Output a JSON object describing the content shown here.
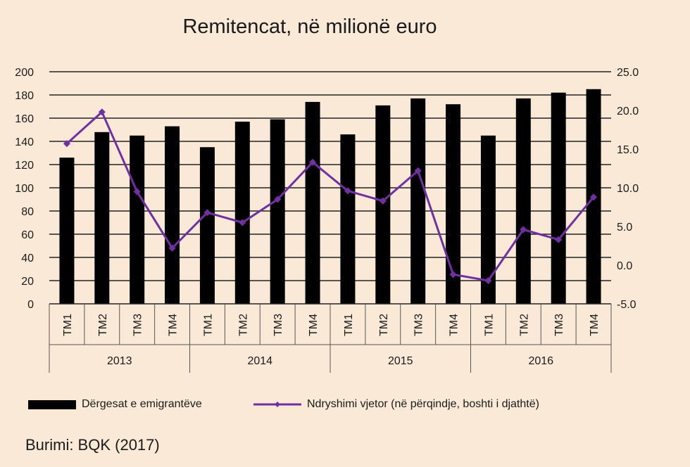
{
  "chart_data": {
    "type": "bar+line",
    "title": "Remitencat, në milionë euro",
    "categories": [
      "TM1",
      "TM2",
      "TM3",
      "TM4",
      "TM1",
      "TM2",
      "TM3",
      "TM4",
      "TM1",
      "TM2",
      "TM3",
      "TM4",
      "TM1",
      "TM2",
      "TM3",
      "TM4"
    ],
    "groups": [
      {
        "label": "2013",
        "start": 0,
        "end": 3
      },
      {
        "label": "2014",
        "start": 4,
        "end": 7
      },
      {
        "label": "2015",
        "start": 8,
        "end": 11
      },
      {
        "label": "2016",
        "start": 12,
        "end": 15
      }
    ],
    "series": [
      {
        "name": "Dërgesat e emigrantëve",
        "type": "bar",
        "axis": "left",
        "color": "#000000",
        "values": [
          126,
          148,
          145,
          153,
          135,
          157,
          159,
          174,
          146,
          171,
          177,
          172,
          145,
          177,
          182,
          185
        ]
      },
      {
        "name": "Ndryshimi vjetor (në përqindje, boshti i djathtë)",
        "type": "line",
        "axis": "right",
        "color": "#7030a0",
        "values": [
          15.7,
          19.8,
          9.5,
          2.2,
          6.8,
          5.5,
          8.5,
          13.3,
          9.6,
          8.3,
          12.2,
          -1.2,
          -2.0,
          4.6,
          3.3,
          8.8
        ]
      }
    ],
    "ylim_left": [
      0,
      200
    ],
    "yticks_left": [
      "0",
      "20",
      "40",
      "60",
      "80",
      "100",
      "120",
      "140",
      "160",
      "180",
      "200"
    ],
    "ylim_right": [
      -5,
      25
    ],
    "yticks_right": [
      "-5.0",
      "0.0",
      "5.0",
      "10.0",
      "15.0",
      "20.0",
      "25.0"
    ],
    "grid": true,
    "legend": "bottom"
  },
  "source": "Burimi:  BQK (2017)"
}
